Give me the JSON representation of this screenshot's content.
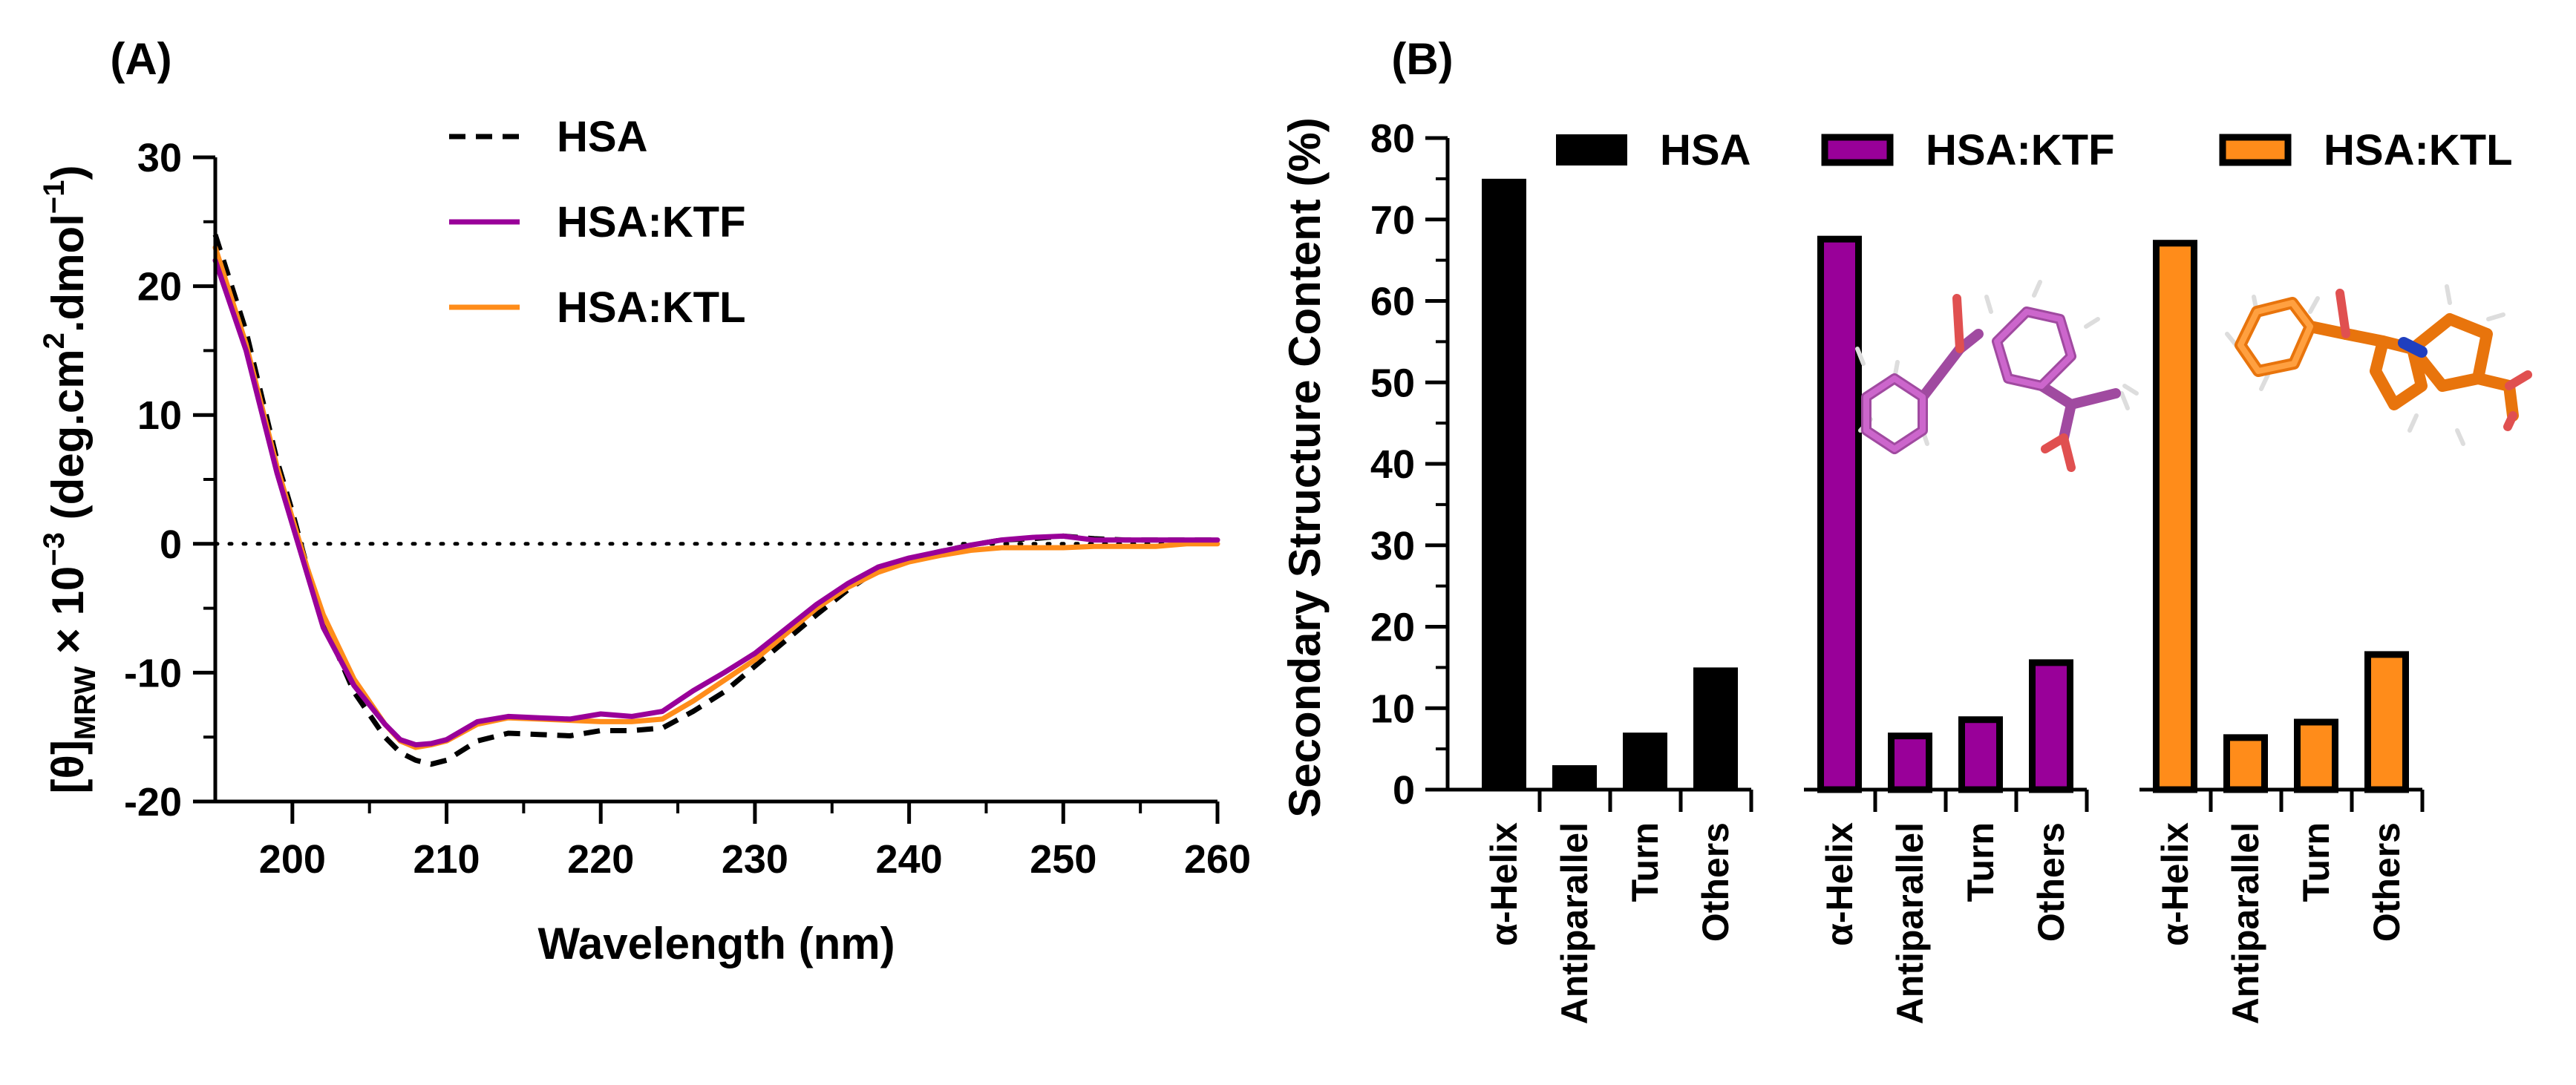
{
  "figure": {
    "panel_a_label": "(A)",
    "panel_b_label": "(B)"
  },
  "colors": {
    "HSA": "#000000",
    "HSA:KTF": "#990099",
    "HSA:KTL": "#ff8c1a"
  },
  "chart_data": [
    {
      "type": "line",
      "title": "",
      "panel": "(A)",
      "xlabel": "Wavelength (nm)",
      "ylabel_parts": [
        "[θ]",
        "MRW",
        " × 10",
        "−3",
        " (deg.cm",
        "2",
        ".dmol",
        "−1",
        ")"
      ],
      "xlim": [
        195,
        260
      ],
      "ylim": [
        -20,
        30
      ],
      "xticks": [
        200,
        210,
        220,
        230,
        240,
        250,
        260
      ],
      "yticks": [
        -20,
        -10,
        0,
        10,
        20,
        30
      ],
      "ytick_labels": [
        "-20",
        "-10",
        "0",
        "10",
        "20",
        "30"
      ],
      "zero_line": "dotted",
      "legend_position": "top-center",
      "series": [
        {
          "name": "HSA",
          "style": "dashed",
          "x": [
            195,
            197,
            199,
            200,
            201,
            202,
            204,
            206,
            207,
            208,
            209,
            210,
            212,
            214,
            216,
            218,
            220,
            222,
            224,
            226,
            228,
            230,
            232,
            234,
            236,
            238,
            240,
            242,
            244,
            246,
            248,
            250,
            252,
            254,
            256,
            258,
            260
          ],
          "y": [
            24,
            16.5,
            6.5,
            2.5,
            -2,
            -6,
            -11.5,
            -15,
            -16.2,
            -16.8,
            -17.1,
            -16.8,
            -15.3,
            -14.7,
            -14.8,
            -14.9,
            -14.5,
            -14.5,
            -14.3,
            -13,
            -11.5,
            -9.5,
            -7.5,
            -5.5,
            -3.6,
            -2,
            -1.2,
            -0.6,
            -0.1,
            0.3,
            0.4,
            0.6,
            0.4,
            0.3,
            0.3,
            0.3,
            0.3
          ]
        },
        {
          "name": "HSA:KTF",
          "style": "solid",
          "x": [
            195,
            197,
            199,
            200,
            201,
            202,
            204,
            206,
            207,
            208,
            209,
            210,
            212,
            214,
            216,
            218,
            220,
            222,
            224,
            226,
            228,
            230,
            232,
            234,
            236,
            238,
            240,
            242,
            244,
            246,
            248,
            250,
            252,
            254,
            256,
            258,
            260
          ],
          "y": [
            22,
            15,
            5.5,
            1.5,
            -2.5,
            -6.5,
            -11,
            -14,
            -15.2,
            -15.6,
            -15.5,
            -15.2,
            -13.8,
            -13.4,
            -13.5,
            -13.6,
            -13.2,
            -13.4,
            -13,
            -11.4,
            -10,
            -8.5,
            -6.6,
            -4.7,
            -3.1,
            -1.8,
            -1.1,
            -0.6,
            -0.1,
            0.3,
            0.5,
            0.6,
            0.3,
            0.3,
            0.3,
            0.3,
            0.3
          ]
        },
        {
          "name": "HSA:KTL",
          "style": "solid",
          "x": [
            195,
            197,
            199,
            200,
            201,
            202,
            204,
            206,
            207,
            208,
            209,
            210,
            212,
            214,
            216,
            218,
            220,
            222,
            224,
            226,
            228,
            230,
            232,
            234,
            236,
            238,
            240,
            242,
            244,
            246,
            248,
            250,
            252,
            254,
            256,
            258,
            260
          ],
          "y": [
            23,
            15.5,
            6,
            2,
            -2,
            -5.5,
            -10.5,
            -14,
            -15.3,
            -15.8,
            -15.6,
            -15.3,
            -14,
            -13.5,
            -13.6,
            -13.7,
            -13.8,
            -13.8,
            -13.6,
            -12.2,
            -10.6,
            -9,
            -7,
            -5,
            -3.4,
            -2.2,
            -1.4,
            -0.9,
            -0.5,
            -0.3,
            -0.3,
            -0.3,
            -0.2,
            -0.2,
            -0.2,
            0,
            0
          ]
        }
      ]
    },
    {
      "type": "bar",
      "title": "",
      "panel": "(B)",
      "xlabel": "",
      "ylabel": "Secondary Structure Content (%)",
      "ylim": [
        0,
        80
      ],
      "yticks": [
        0,
        10,
        20,
        30,
        40,
        50,
        60,
        70,
        80
      ],
      "categories": [
        "α-Helix",
        "Antiparallel",
        "Turn",
        "Others"
      ],
      "legend_position": "top",
      "series": [
        {
          "name": "HSA",
          "values": [
            75,
            3,
            7,
            15
          ]
        },
        {
          "name": "HSA:KTF",
          "values": [
            68,
            7,
            9,
            16
          ]
        },
        {
          "name": "HSA:KTL",
          "values": [
            67.5,
            6.8,
            8.7,
            17
          ]
        }
      ],
      "insets": [
        "KTF molecular structure",
        "KTL molecular structure"
      ]
    }
  ]
}
